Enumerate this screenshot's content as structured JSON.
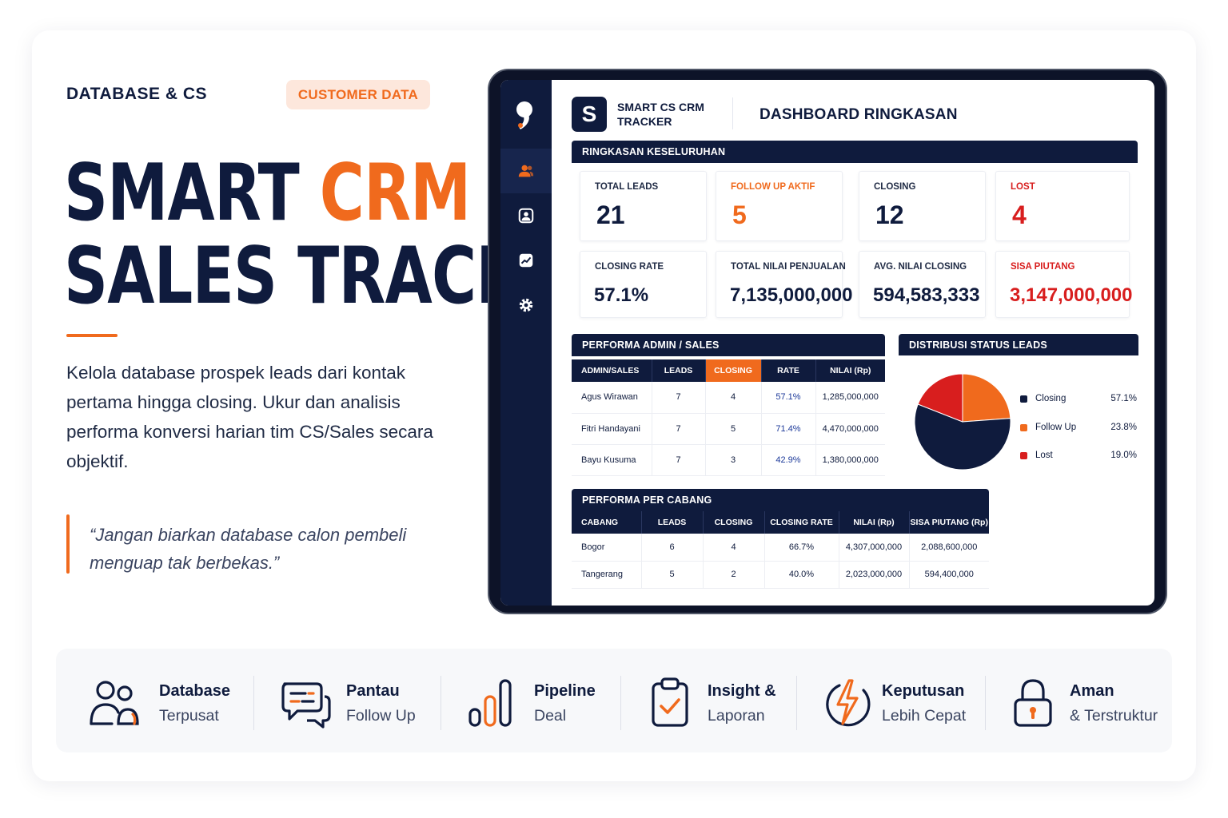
{
  "left": {
    "eyebrow": "DATABASE & CS",
    "pill": "CUSTOMER DATA",
    "title_line1_a": "SMART ",
    "title_line1_b": "CRM &",
    "title_line2": "SALES TRACKER",
    "description": "Kelola database prospek leads dari kontak pertama hingga closing. Ukur dan analisis performa konversi harian tim CS/Sales secara objektif.",
    "quote": "“Jangan biarkan database calon pembeli menguap tak berbekas.”"
  },
  "app": {
    "logo_letter": "S",
    "name": "SMART CS CRM TRACKER",
    "page_title": "DASHBOARD RINGKASAN",
    "sidebar_icons": [
      "brand-logo-icon",
      "users-icon",
      "contact-icon",
      "chart-icon",
      "gear-icon"
    ]
  },
  "summary": {
    "header": "RINGKASAN KESELURUHAN",
    "kpis": [
      {
        "label": "TOTAL LEADS",
        "value": "21"
      },
      {
        "label": "FOLLOW UP AKTIF",
        "value": "5"
      },
      {
        "label": "CLOSING",
        "value": "12"
      },
      {
        "label": "LOST",
        "value": "4"
      },
      {
        "label": "CLOSING RATE",
        "value": "57.1%"
      },
      {
        "label": "TOTAL NILAI PENJUALAN",
        "value": "7,135,000,000"
      },
      {
        "label": "AVG. NILAI CLOSING",
        "value": "594,583,333"
      },
      {
        "label": "SISA PIUTANG",
        "value": "3,147,000,000"
      }
    ]
  },
  "admin_table": {
    "header": "PERFORMA ADMIN / SALES",
    "columns": [
      "ADMIN/SALES",
      "LEADS",
      "CLOSING",
      "RATE",
      "NILAI (Rp)"
    ],
    "rows": [
      [
        "Agus Wirawan",
        "7",
        "4",
        "57.1%",
        "1,285,000,000"
      ],
      [
        "Fitri Handayani",
        "7",
        "5",
        "71.4%",
        "4,470,000,000"
      ],
      [
        "Bayu Kusuma",
        "7",
        "3",
        "42.9%",
        "1,380,000,000"
      ]
    ]
  },
  "chart_data": {
    "type": "pie",
    "title": "DISTRIBUSI STATUS LEADS",
    "categories": [
      "Closing",
      "Follow Up",
      "Lost"
    ],
    "values": [
      57.1,
      23.8,
      19.0
    ],
    "value_labels": [
      "57.1%",
      "23.8%",
      "19.0%"
    ],
    "colors": [
      "#0f1b3d",
      "#f06a1d",
      "#d81e1e"
    ],
    "legend": "right"
  },
  "branch_table": {
    "header": "PERFORMA PER CABANG",
    "columns": [
      "CABANG",
      "LEADS",
      "CLOSING",
      "CLOSING RATE",
      "NILAI (Rp)",
      "SISA PIUTANG (Rp)"
    ],
    "rows": [
      [
        "Bogor",
        "6",
        "4",
        "66.7%",
        "4,307,000,000",
        "2,088,600,000"
      ],
      [
        "Tangerang",
        "5",
        "2",
        "40.0%",
        "2,023,000,000",
        "594,400,000"
      ]
    ]
  },
  "features": [
    {
      "icon": "users-icon",
      "line1": "Database",
      "line2": "Terpusat"
    },
    {
      "icon": "chat-icon",
      "line1": "Pantau",
      "line2": "Follow Up"
    },
    {
      "icon": "bar-chart-icon",
      "line1": "Pipeline",
      "line2": "Deal"
    },
    {
      "icon": "clipboard-check-icon",
      "line1": "Insight &",
      "line2": "Laporan"
    },
    {
      "icon": "lightning-icon",
      "line1": "Keputusan",
      "line2": "Lebih Cepat"
    },
    {
      "icon": "lock-icon",
      "line1": "Aman",
      "line2": "& Terstruktur"
    }
  ],
  "colors": {
    "navy": "#0f1b3d",
    "orange": "#f06a1d",
    "red": "#d81e1e"
  }
}
